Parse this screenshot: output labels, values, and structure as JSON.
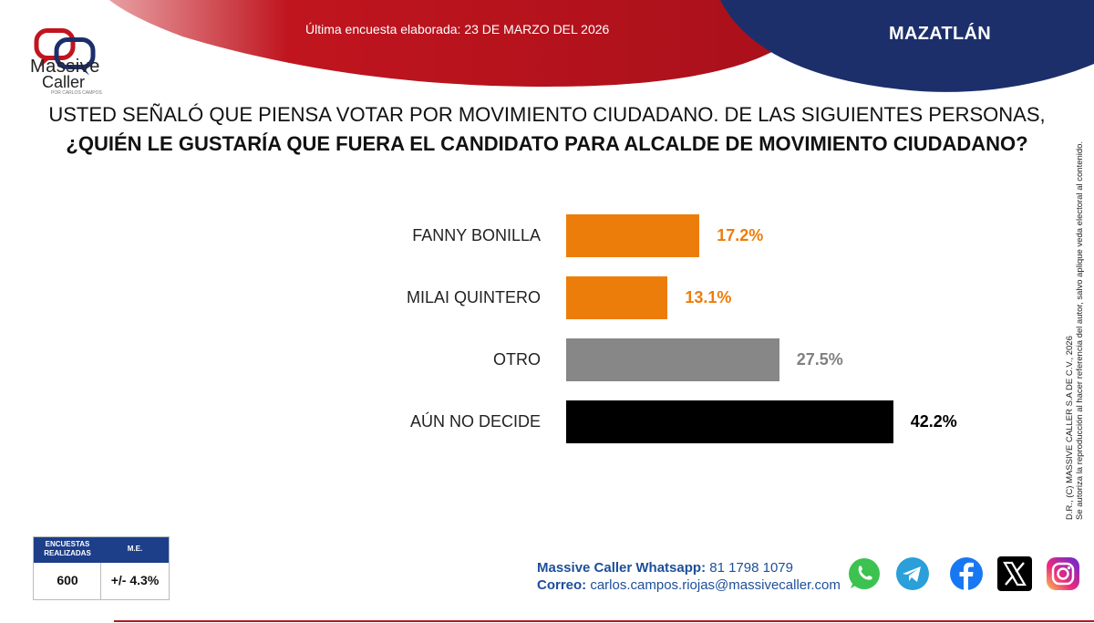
{
  "header": {
    "survey_date": "Última encuesta elaborada: 23 DE MARZO DEL 2026",
    "city": "MAZATLÁN",
    "brand_red": "#c0151f",
    "brand_navy": "#1c2f6b"
  },
  "logo": {
    "name_line1": "Massive",
    "name_line2": "Caller",
    "tagline": "POR CARLOS CAMPOS"
  },
  "question": {
    "line1": "USTED SEÑALÓ QUE PIENSA VOTAR POR MOVIMIENTO CIUDADANO. DE LAS SIGUIENTES PERSONAS,",
    "line2": "¿QUIÉN LE GUSTARÍA QUE FUERA EL CANDIDATO PARA ALCALDE DE MOVIMIENTO CIUDADANO?"
  },
  "chart_data": {
    "type": "bar",
    "orientation": "horizontal",
    "title": "¿QUIÉN LE GUSTARÍA QUE FUERA EL CANDIDATO PARA ALCALDE DE MOVIMIENTO CIUDADANO?",
    "categories": [
      "FANNY BONILLA",
      "MILAI QUINTERO",
      "OTRO",
      "AÚN NO DECIDE"
    ],
    "values": [
      17.2,
      13.1,
      27.5,
      42.2
    ],
    "value_labels": [
      "17.2%",
      "13.1%",
      "27.5%",
      "42.2%"
    ],
    "colors": [
      "#ec7d0a",
      "#ec7d0a",
      "#878787",
      "#000000"
    ],
    "label_colors": [
      "#ec7d0a",
      "#ec7d0a",
      "#808080",
      "#000000"
    ],
    "unit": "%",
    "xlim": [
      0,
      50
    ],
    "grid": false,
    "legend": "none"
  },
  "rights": {
    "line1": "D.R., (C) MASSIVE CALLER S.A DE C.V., 2026",
    "line2": "Se autoriza la reproducción al hacer referencia del autor, salvo aplique veda electoral al contenido."
  },
  "stats": {
    "header_surveys": "ENCUESTAS REALIZADAS",
    "header_me": "M.E.",
    "surveys": "600",
    "margin_error": "+/- 4.3%"
  },
  "contact": {
    "whatsapp_label": "Massive Caller Whatsapp:",
    "whatsapp": "81 1798 1079",
    "email_label": "Correo:",
    "email": "carlos.campos.riojas@massivecaller.com"
  },
  "social": [
    "whatsapp-icon",
    "telegram-icon",
    "facebook-icon",
    "x-icon",
    "instagram-icon"
  ]
}
